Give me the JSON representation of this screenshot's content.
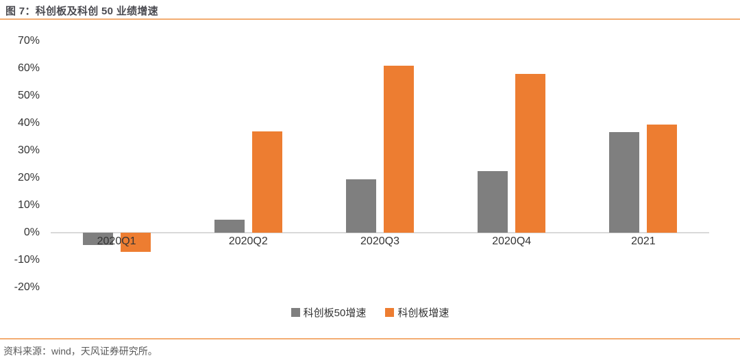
{
  "header": {
    "title": "图 7：科创板及科创 50 业绩增速"
  },
  "footer": {
    "source": "资料来源：wind，天风证券研究所。"
  },
  "colors": {
    "rule_orange": "#F3AC71",
    "axis_line": "#D9D9D9",
    "series_gray": "#7F7F7F",
    "series_orange": "#ED7D31",
    "tick_text": "#333333"
  },
  "chart_data": {
    "type": "bar",
    "title": "图 7：科创板及科创 50 业绩增速",
    "categories": [
      "2020Q1",
      "2020Q2",
      "2020Q3",
      "2020Q4",
      "2021"
    ],
    "series": [
      {
        "name": "科创板50增速",
        "color": "#7F7F7F",
        "values": [
          -4.6,
          4.7,
          19.6,
          22.6,
          36.7
        ]
      },
      {
        "name": "科创板增速",
        "color": "#ED7D31",
        "values": [
          -6.9,
          37.0,
          61.0,
          58.0,
          39.5
        ]
      }
    ],
    "xlabel": "",
    "ylabel": "",
    "ylim": [
      -20,
      70
    ],
    "y_ticks": [
      70,
      60,
      50,
      40,
      30,
      20,
      10,
      0,
      -10,
      -20
    ],
    "y_tick_format": "percent",
    "grid": false,
    "legend_position": "bottom"
  }
}
